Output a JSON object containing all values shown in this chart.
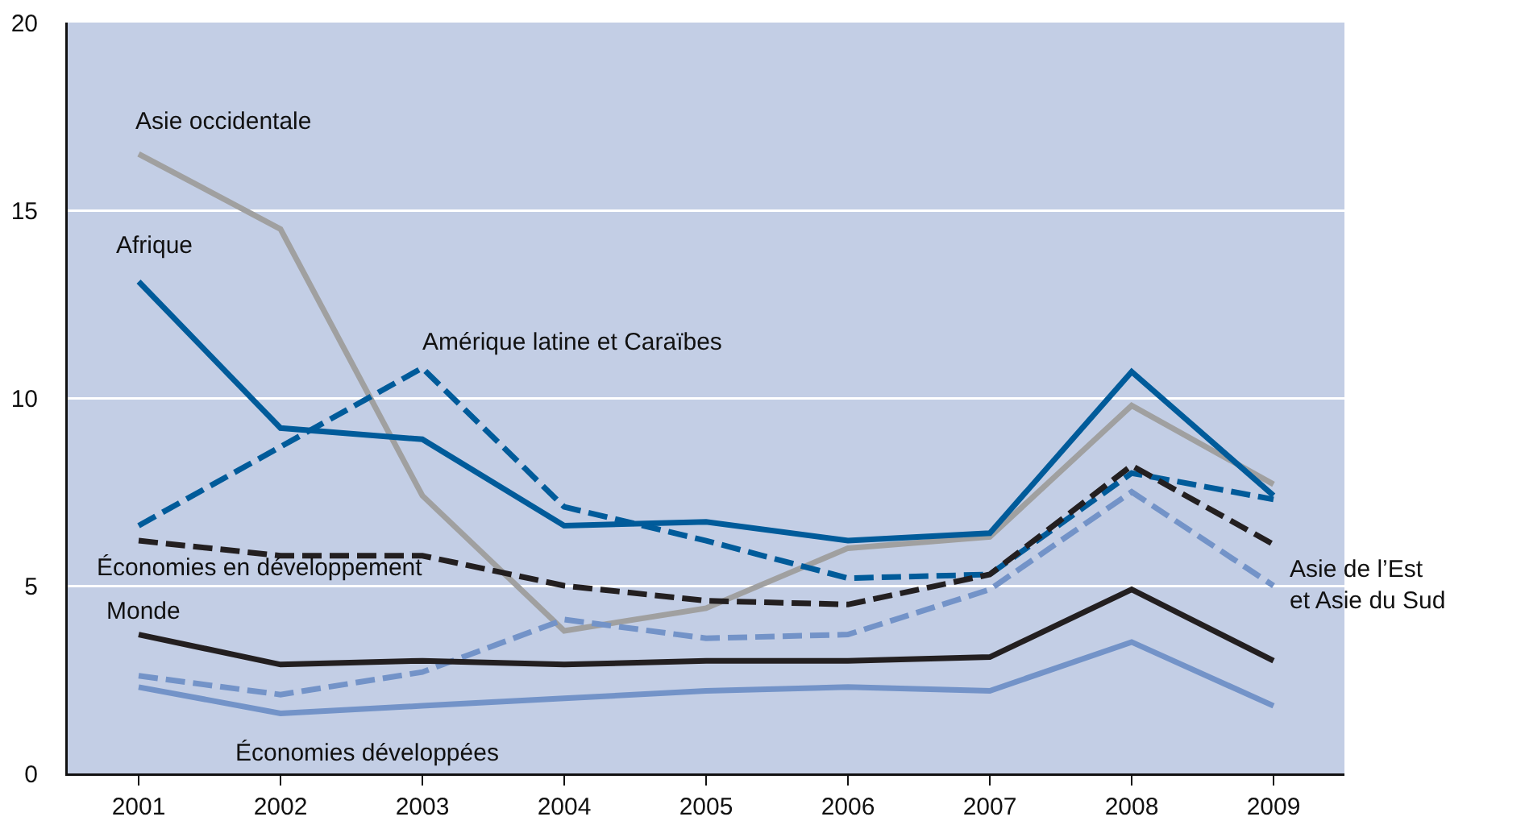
{
  "chart_data": {
    "type": "line",
    "categories": [
      "2001",
      "2002",
      "2003",
      "2004",
      "2005",
      "2006",
      "2007",
      "2008",
      "2009"
    ],
    "ylim": [
      0,
      20
    ],
    "yticks": [
      0,
      5,
      10,
      15,
      20
    ],
    "grid": "y",
    "legend": false,
    "marker": "none",
    "series": [
      {
        "name": "Asie occidentale",
        "color": "#a0a0a0",
        "line_style": "solid",
        "values": [
          16.5,
          14.5,
          7.4,
          3.8,
          4.4,
          6.0,
          6.3,
          9.8,
          7.7
        ]
      },
      {
        "name": "Afrique",
        "color": "#005b9a",
        "line_style": "solid",
        "values": [
          13.1,
          9.2,
          8.9,
          6.6,
          6.7,
          6.2,
          6.4,
          10.7,
          7.4
        ]
      },
      {
        "name": "Amérique latine et Caraïbes",
        "color": "#005b9a",
        "line_style": "dashed",
        "values": [
          6.6,
          8.7,
          10.8,
          7.1,
          6.2,
          5.2,
          5.3,
          8.0,
          7.3
        ]
      },
      {
        "name": "Économies en développement",
        "color": "#231f20",
        "line_style": "dashed",
        "values": [
          6.2,
          5.8,
          5.8,
          5.0,
          4.6,
          4.5,
          5.3,
          8.2,
          6.1
        ]
      },
      {
        "name": "Asie de l’Est et Asie du Sud",
        "color": "#7393c8",
        "line_style": "dashed",
        "values": [
          2.6,
          2.1,
          2.7,
          4.1,
          3.6,
          3.7,
          4.9,
          7.5,
          5.0
        ]
      },
      {
        "name": "Monde",
        "color": "#231f20",
        "line_style": "solid",
        "values": [
          3.7,
          2.9,
          3.0,
          2.9,
          3.0,
          3.0,
          3.1,
          4.9,
          3.0
        ]
      },
      {
        "name": "Économies développées",
        "color": "#7393c8",
        "line_style": "solid",
        "values": [
          2.3,
          1.6,
          1.8,
          2.0,
          2.2,
          2.3,
          2.2,
          3.5,
          1.8
        ]
      }
    ]
  }
}
